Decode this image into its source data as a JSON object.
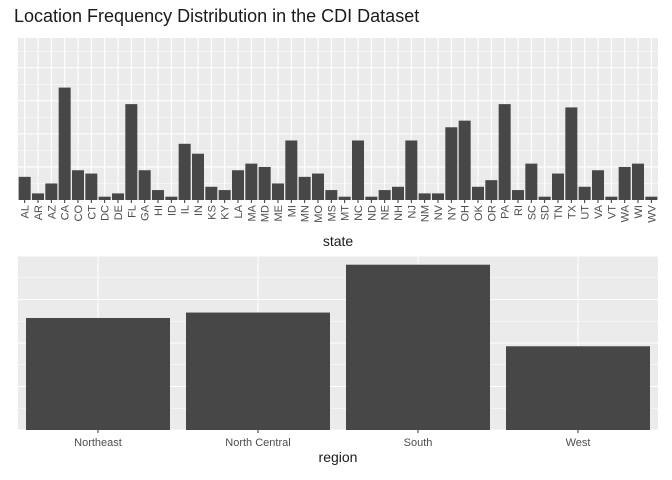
{
  "chart_data": [
    {
      "type": "bar",
      "title": "Location Frequency Distribution in the CDI Dataset",
      "xlabel": "state",
      "ylabel": "",
      "ylim": [
        0,
        49
      ],
      "grid": true,
      "categories": [
        "AL",
        "AR",
        "AZ",
        "CA",
        "CO",
        "CT",
        "DC",
        "DE",
        "FL",
        "GA",
        "HI",
        "ID",
        "IL",
        "IN",
        "KS",
        "KY",
        "LA",
        "MA",
        "MD",
        "ME",
        "MI",
        "MN",
        "MO",
        "MS",
        "MT",
        "NC",
        "ND",
        "NE",
        "NH",
        "NJ",
        "NM",
        "NV",
        "NY",
        "OH",
        "OK",
        "OR",
        "PA",
        "RI",
        "SC",
        "SD",
        "TN",
        "TX",
        "UT",
        "VA",
        "VT",
        "WA",
        "WI",
        "WV"
      ],
      "values": [
        7,
        2,
        5,
        34,
        9,
        8,
        1,
        2,
        29,
        9,
        3,
        1,
        17,
        14,
        4,
        3,
        9,
        11,
        10,
        5,
        18,
        7,
        8,
        3,
        1,
        18,
        1,
        3,
        4,
        18,
        2,
        2,
        22,
        24,
        4,
        6,
        29,
        3,
        11,
        1,
        8,
        28,
        4,
        9,
        1,
        10,
        11,
        1
      ]
    },
    {
      "type": "bar",
      "title": "",
      "xlabel": "region",
      "ylabel": "",
      "ylim": [
        0,
        160
      ],
      "grid": true,
      "categories": [
        "Northeast",
        "North Central",
        "South",
        "West"
      ],
      "values": [
        103,
        108,
        152,
        77
      ]
    }
  ]
}
